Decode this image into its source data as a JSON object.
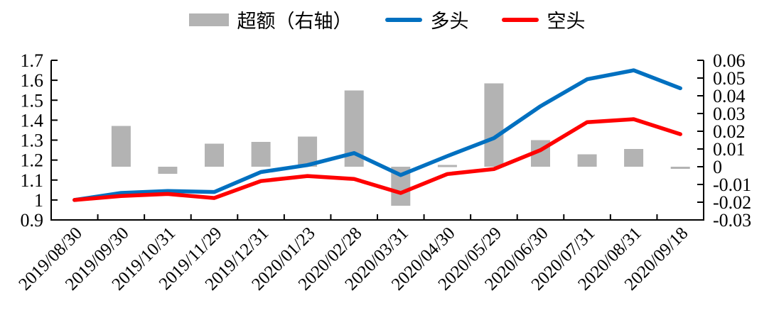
{
  "chart_data": {
    "type": "combo",
    "title": "",
    "categories": [
      "2019/08/30",
      "2019/09/30",
      "2019/10/31",
      "2019/11/29",
      "2019/12/31",
      "2020/01/23",
      "2020/02/28",
      "2020/03/31",
      "2020/04/30",
      "2020/05/29",
      "2020/06/30",
      "2020/07/31",
      "2020/08/31",
      "2020/09/18"
    ],
    "series": [
      {
        "name": "超额（右轴）",
        "type": "bar",
        "axis": "right",
        "color": "#b3b3b3",
        "values": [
          0,
          0.023,
          -0.004,
          0.013,
          0.014,
          0.017,
          0.043,
          -0.022,
          0.001,
          0.047,
          0.015,
          0.007,
          0.01,
          -0.001
        ]
      },
      {
        "name": "多头",
        "type": "line",
        "axis": "left",
        "color": "#0070c0",
        "values": [
          1.0,
          1.035,
          1.045,
          1.04,
          1.14,
          1.175,
          1.235,
          1.125,
          1.22,
          1.31,
          1.47,
          1.605,
          1.65,
          1.56
        ]
      },
      {
        "name": "空头",
        "type": "line",
        "axis": "left",
        "color": "#ff0000",
        "values": [
          1.0,
          1.02,
          1.03,
          1.01,
          1.095,
          1.12,
          1.105,
          1.035,
          1.13,
          1.155,
          1.25,
          1.39,
          1.405,
          1.33
        ]
      }
    ],
    "left_axis": {
      "min": 0.9,
      "max": 1.7,
      "step": 0.1,
      "tick_values": [
        1.7,
        1.6,
        1.5,
        1.4,
        1.3,
        1.2,
        1.1,
        1.0,
        0.9
      ],
      "tick_labels": [
        "1.7",
        "1.6",
        "1.5",
        "1.4",
        "1.3",
        "1.2",
        "1.1",
        "1",
        "0.9"
      ]
    },
    "right_axis": {
      "min": -0.03,
      "max": 0.06,
      "step": 0.01,
      "tick_values": [
        0.06,
        0.05,
        0.04,
        0.03,
        0.02,
        0.01,
        0,
        -0.01,
        -0.02,
        -0.03
      ],
      "tick_labels": [
        "0.06",
        "0.05",
        "0.04",
        "0.03",
        "0.02",
        "0.01",
        "0",
        "-0.01",
        "-0.02",
        "-0.03"
      ]
    },
    "legend_position": "top",
    "grid": false
  }
}
